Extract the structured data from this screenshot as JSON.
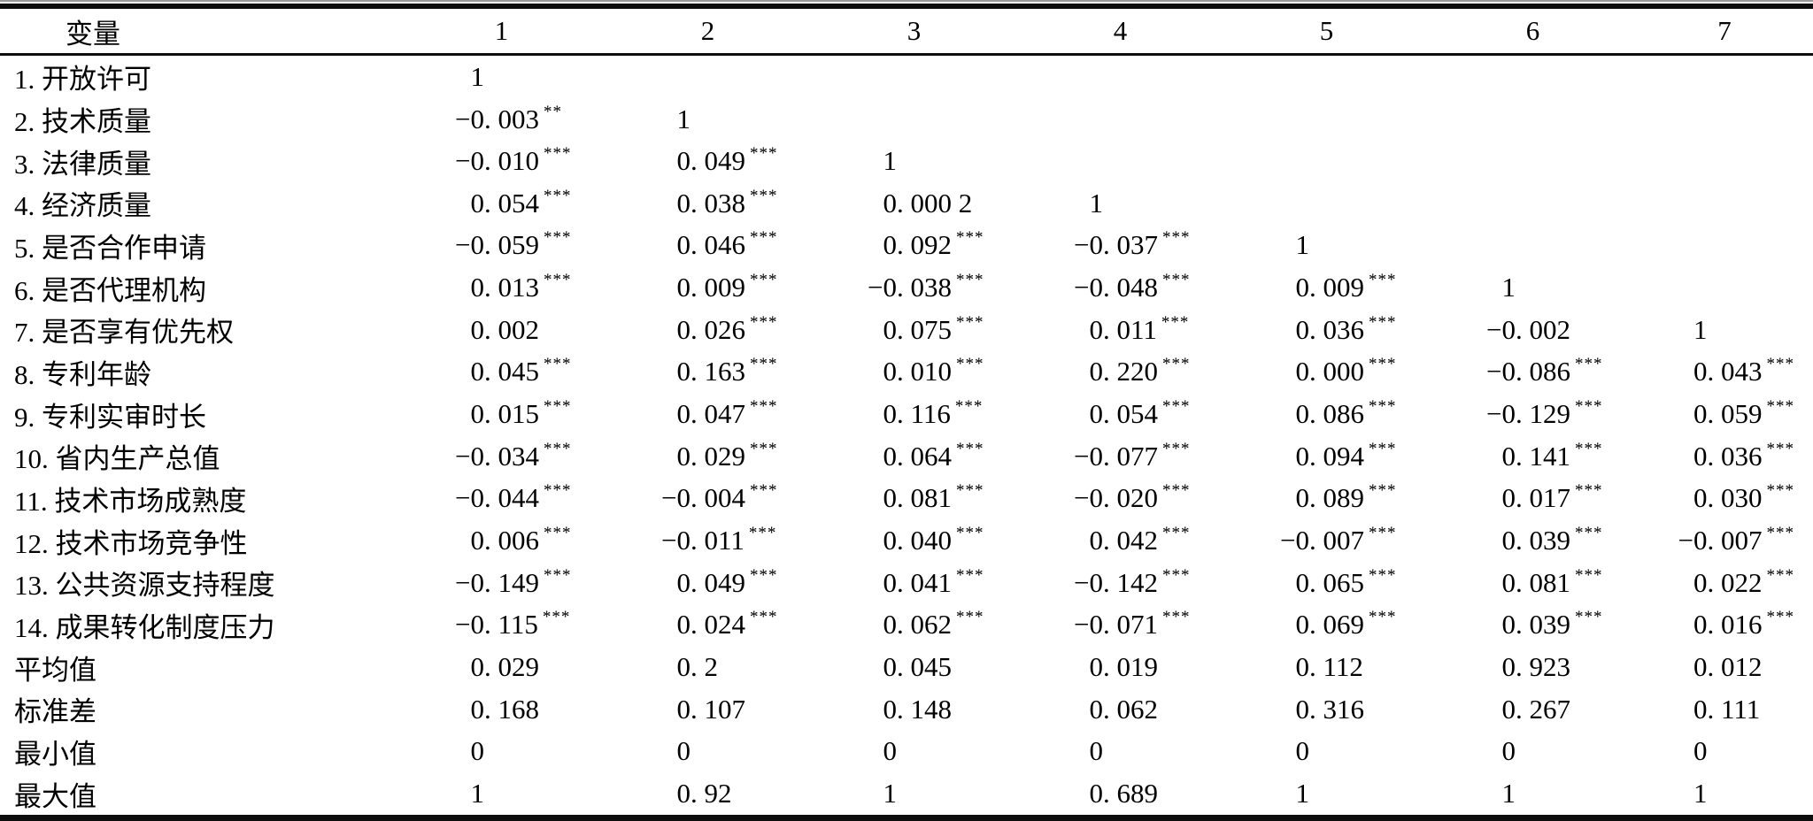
{
  "colors": {
    "text": "#000000",
    "rule": "#0d0d0d"
  },
  "table": {
    "header": {
      "variable_col": "变量",
      "num_cols": [
        "1",
        "2",
        "3",
        "4",
        "5",
        "6",
        "7"
      ]
    },
    "rows": [
      {
        "label": "1. 开放许可",
        "cells": [
          {
            "v": "1"
          },
          null,
          null,
          null,
          null,
          null,
          null
        ]
      },
      {
        "label": "2. 技术质量",
        "cells": [
          {
            "v": "−0. 003",
            "s": "**"
          },
          {
            "v": "1"
          },
          null,
          null,
          null,
          null,
          null
        ]
      },
      {
        "label": "3. 法律质量",
        "cells": [
          {
            "v": "−0. 010",
            "s": "***"
          },
          {
            "v": "0. 049",
            "s": "***"
          },
          {
            "v": "1"
          },
          null,
          null,
          null,
          null
        ]
      },
      {
        "label": "4. 经济质量",
        "cells": [
          {
            "v": "0. 054",
            "s": "***"
          },
          {
            "v": "0. 038",
            "s": "***"
          },
          {
            "v": "0. 000 2"
          },
          {
            "v": "1"
          },
          null,
          null,
          null
        ]
      },
      {
        "label": "5. 是否合作申请",
        "cells": [
          {
            "v": "−0. 059",
            "s": "***"
          },
          {
            "v": "0. 046",
            "s": "***"
          },
          {
            "v": "0. 092",
            "s": "***"
          },
          {
            "v": "−0. 037",
            "s": "***"
          },
          {
            "v": "1"
          },
          null,
          null
        ]
      },
      {
        "label": "6. 是否代理机构",
        "cells": [
          {
            "v": "0. 013",
            "s": "***"
          },
          {
            "v": "0. 009",
            "s": "***"
          },
          {
            "v": "−0. 038",
            "s": "***"
          },
          {
            "v": "−0. 048",
            "s": "***"
          },
          {
            "v": "0. 009",
            "s": "***"
          },
          {
            "v": "1"
          },
          null
        ]
      },
      {
        "label": "7. 是否享有优先权",
        "cells": [
          {
            "v": "0. 002"
          },
          {
            "v": "0. 026",
            "s": "***"
          },
          {
            "v": "0. 075",
            "s": "***"
          },
          {
            "v": "0. 011",
            "s": "***"
          },
          {
            "v": "0. 036",
            "s": "***"
          },
          {
            "v": "−0. 002"
          },
          {
            "v": "1"
          }
        ]
      },
      {
        "label": "8. 专利年龄",
        "cells": [
          {
            "v": "0. 045",
            "s": "***"
          },
          {
            "v": "0. 163",
            "s": "***"
          },
          {
            "v": "0. 010",
            "s": "***"
          },
          {
            "v": "0. 220",
            "s": "***"
          },
          {
            "v": "0. 000",
            "s": "***"
          },
          {
            "v": "−0. 086",
            "s": "***"
          },
          {
            "v": "0. 043",
            "s": "***"
          }
        ]
      },
      {
        "label": "9. 专利实审时长",
        "cells": [
          {
            "v": "0. 015",
            "s": "***"
          },
          {
            "v": "0. 047",
            "s": "***"
          },
          {
            "v": "0. 116",
            "s": "***"
          },
          {
            "v": "0. 054",
            "s": "***"
          },
          {
            "v": "0. 086",
            "s": "***"
          },
          {
            "v": "−0. 129",
            "s": "***"
          },
          {
            "v": "0. 059",
            "s": "***"
          }
        ]
      },
      {
        "label": "10. 省内生产总值",
        "cells": [
          {
            "v": "−0. 034",
            "s": "***"
          },
          {
            "v": "0. 029",
            "s": "***"
          },
          {
            "v": "0. 064",
            "s": "***"
          },
          {
            "v": "−0. 077",
            "s": "***"
          },
          {
            "v": "0. 094",
            "s": "***"
          },
          {
            "v": "0. 141",
            "s": "***"
          },
          {
            "v": "0. 036",
            "s": "***"
          }
        ]
      },
      {
        "label": "11. 技术市场成熟度",
        "cells": [
          {
            "v": "−0. 044",
            "s": "***"
          },
          {
            "v": "−0. 004",
            "s": "***"
          },
          {
            "v": "0. 081",
            "s": "***"
          },
          {
            "v": "−0. 020",
            "s": "***"
          },
          {
            "v": "0. 089",
            "s": "***"
          },
          {
            "v": "0. 017",
            "s": "***"
          },
          {
            "v": "0. 030",
            "s": "***"
          }
        ]
      },
      {
        "label": "12. 技术市场竞争性",
        "cells": [
          {
            "v": "0. 006",
            "s": "***"
          },
          {
            "v": "−0. 011",
            "s": "***"
          },
          {
            "v": "0. 040",
            "s": "***"
          },
          {
            "v": "0. 042",
            "s": "***"
          },
          {
            "v": "−0. 007",
            "s": "***"
          },
          {
            "v": "0. 039",
            "s": "***"
          },
          {
            "v": "−0. 007",
            "s": "***"
          }
        ]
      },
      {
        "label": "13. 公共资源支持程度",
        "cells": [
          {
            "v": "−0. 149",
            "s": "***"
          },
          {
            "v": "0. 049",
            "s": "***"
          },
          {
            "v": "0. 041",
            "s": "***"
          },
          {
            "v": "−0. 142",
            "s": "***"
          },
          {
            "v": "0. 065",
            "s": "***"
          },
          {
            "v": "0. 081",
            "s": "***"
          },
          {
            "v": "0. 022",
            "s": "***"
          }
        ]
      },
      {
        "label": "14. 成果转化制度压力",
        "cells": [
          {
            "v": "−0. 115",
            "s": "***"
          },
          {
            "v": "0. 024",
            "s": "***"
          },
          {
            "v": "0. 062",
            "s": "***"
          },
          {
            "v": "−0. 071",
            "s": "***"
          },
          {
            "v": "0. 069",
            "s": "***"
          },
          {
            "v": "0. 039",
            "s": "***"
          },
          {
            "v": "0. 016",
            "s": "***"
          }
        ]
      },
      {
        "label": "平均值",
        "cells": [
          {
            "v": "0. 029"
          },
          {
            "v": "0. 2"
          },
          {
            "v": "0. 045"
          },
          {
            "v": "0. 019"
          },
          {
            "v": "0. 112"
          },
          {
            "v": "0. 923"
          },
          {
            "v": "0. 012"
          }
        ]
      },
      {
        "label": "标准差",
        "cells": [
          {
            "v": "0. 168"
          },
          {
            "v": "0. 107"
          },
          {
            "v": "0. 148"
          },
          {
            "v": "0. 062"
          },
          {
            "v": "0. 316"
          },
          {
            "v": "0. 267"
          },
          {
            "v": "0. 111"
          }
        ]
      },
      {
        "label": "最小值",
        "cells": [
          {
            "v": "0"
          },
          {
            "v": "0"
          },
          {
            "v": "0"
          },
          {
            "v": "0"
          },
          {
            "v": "0"
          },
          {
            "v": "0"
          },
          {
            "v": "0"
          }
        ]
      },
      {
        "label": "最大值",
        "cells": [
          {
            "v": "1"
          },
          {
            "v": "0. 92"
          },
          {
            "v": "1"
          },
          {
            "v": "0. 689"
          },
          {
            "v": "1"
          },
          {
            "v": "1"
          },
          {
            "v": "1"
          }
        ]
      }
    ]
  }
}
